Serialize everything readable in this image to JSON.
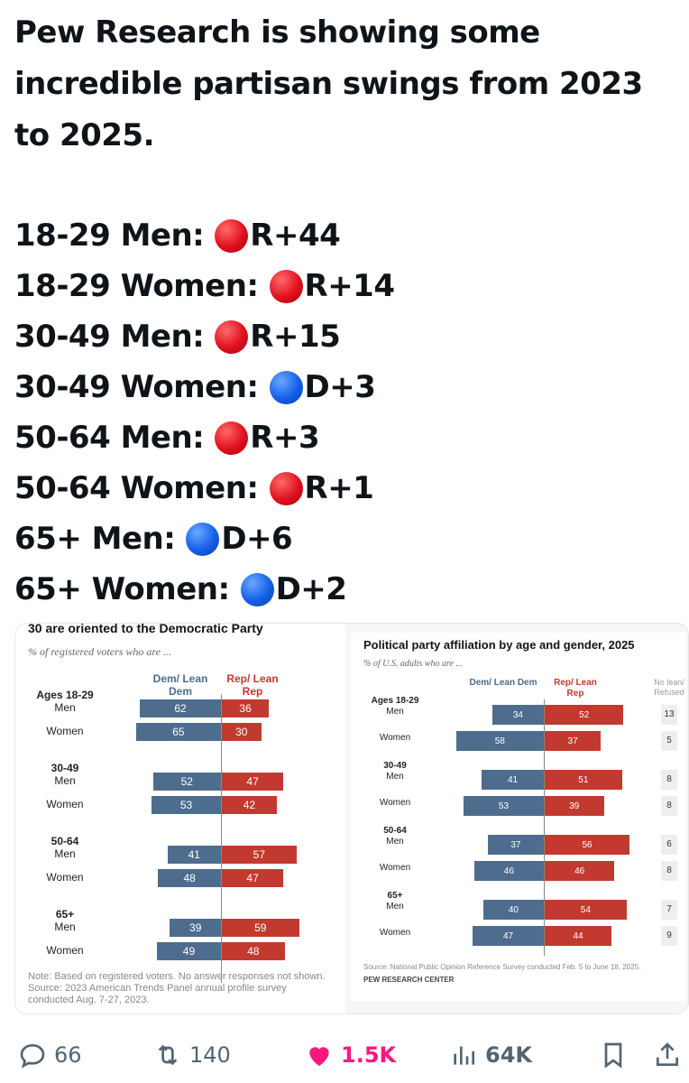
{
  "post": {
    "headline": "Pew Research is showing some incredible partisan swings from 2023 to 2025.",
    "swings": [
      {
        "label": "18-29 Men:",
        "party": "red",
        "value": "R+44"
      },
      {
        "label": "18-29 Women:",
        "party": "red",
        "value": "R+14"
      },
      {
        "label": "30-49 Men:",
        "party": "red",
        "value": "R+15"
      },
      {
        "label": "30-49 Women:",
        "party": "blue",
        "value": "D+3"
      },
      {
        "label": "50-64 Men:",
        "party": "red",
        "value": "R+3"
      },
      {
        "label": "50-64 Women:",
        "party": "red",
        "value": "R+1"
      },
      {
        "label": "65+ Men:",
        "party": "blue",
        "value": "D+6"
      },
      {
        "label": "65+ Women:",
        "party": "blue",
        "value": "D+2"
      }
    ]
  },
  "chart_data": [
    {
      "type": "bar",
      "title": "30 are oriented to the Democratic Party",
      "subtitle": "% of registered voters who are ...",
      "col_dem": "Dem/ Lean Dem",
      "col_rep": "Rep/ Lean Rep",
      "groups": [
        {
          "label": "Ages 18-29",
          "rows": [
            {
              "label": "Men",
              "dem": 62,
              "rep": 36
            },
            {
              "label": "Women",
              "dem": 65,
              "rep": 30
            }
          ]
        },
        {
          "label": "30-49",
          "rows": [
            {
              "label": "Men",
              "dem": 52,
              "rep": 47
            },
            {
              "label": "Women",
              "dem": 53,
              "rep": 42
            }
          ]
        },
        {
          "label": "50-64",
          "rows": [
            {
              "label": "Men",
              "dem": 41,
              "rep": 57
            },
            {
              "label": "Women",
              "dem": 48,
              "rep": 47
            }
          ]
        },
        {
          "label": "65+",
          "rows": [
            {
              "label": "Men",
              "dem": 39,
              "rep": 59
            },
            {
              "label": "Women",
              "dem": 49,
              "rep": 48
            }
          ]
        }
      ],
      "note": "Note: Based on registered voters. No answer responses not shown.",
      "source": "Source: 2023 American Trends Panel annual profile survey",
      "source2": "conducted Aug. 7-27, 2023."
    },
    {
      "type": "bar",
      "title": "Political party affiliation by age and gender, 2025",
      "subtitle": "% of U.S. adults who are ...",
      "col_dem": "Dem/ Lean Dem",
      "col_rep": "Rep/ Lean Rep",
      "col_none": "No lean/ Refused",
      "groups": [
        {
          "label": "Ages 18-29",
          "rows": [
            {
              "label": "Men",
              "dem": 34,
              "rep": 52,
              "none": 13
            },
            {
              "label": "Women",
              "dem": 58,
              "rep": 37,
              "none": 5
            }
          ]
        },
        {
          "label": "30-49",
          "rows": [
            {
              "label": "Men",
              "dem": 41,
              "rep": 51,
              "none": 8
            },
            {
              "label": "Women",
              "dem": 53,
              "rep": 39,
              "none": 8
            }
          ]
        },
        {
          "label": "50-64",
          "rows": [
            {
              "label": "Men",
              "dem": 37,
              "rep": 56,
              "none": 6
            },
            {
              "label": "Women",
              "dem": 46,
              "rep": 46,
              "none": 8
            }
          ]
        },
        {
          "label": "65+",
          "rows": [
            {
              "label": "Men",
              "dem": 40,
              "rep": 54,
              "none": 7
            },
            {
              "label": "Women",
              "dem": 47,
              "rep": 44,
              "none": 9
            }
          ]
        }
      ],
      "source": "Source: National Public Opinion Reference Survey conducted Feb. 5 to June 18, 2025.",
      "credit": "PEW RESEARCH CENTER"
    }
  ],
  "actions": {
    "replies": "66",
    "reposts": "140",
    "likes": "1.5K",
    "views": "64K"
  },
  "colors": {
    "dem": "#4d6c8e",
    "rep": "#c23a2f",
    "like": "#f91880",
    "muted": "#536471"
  }
}
